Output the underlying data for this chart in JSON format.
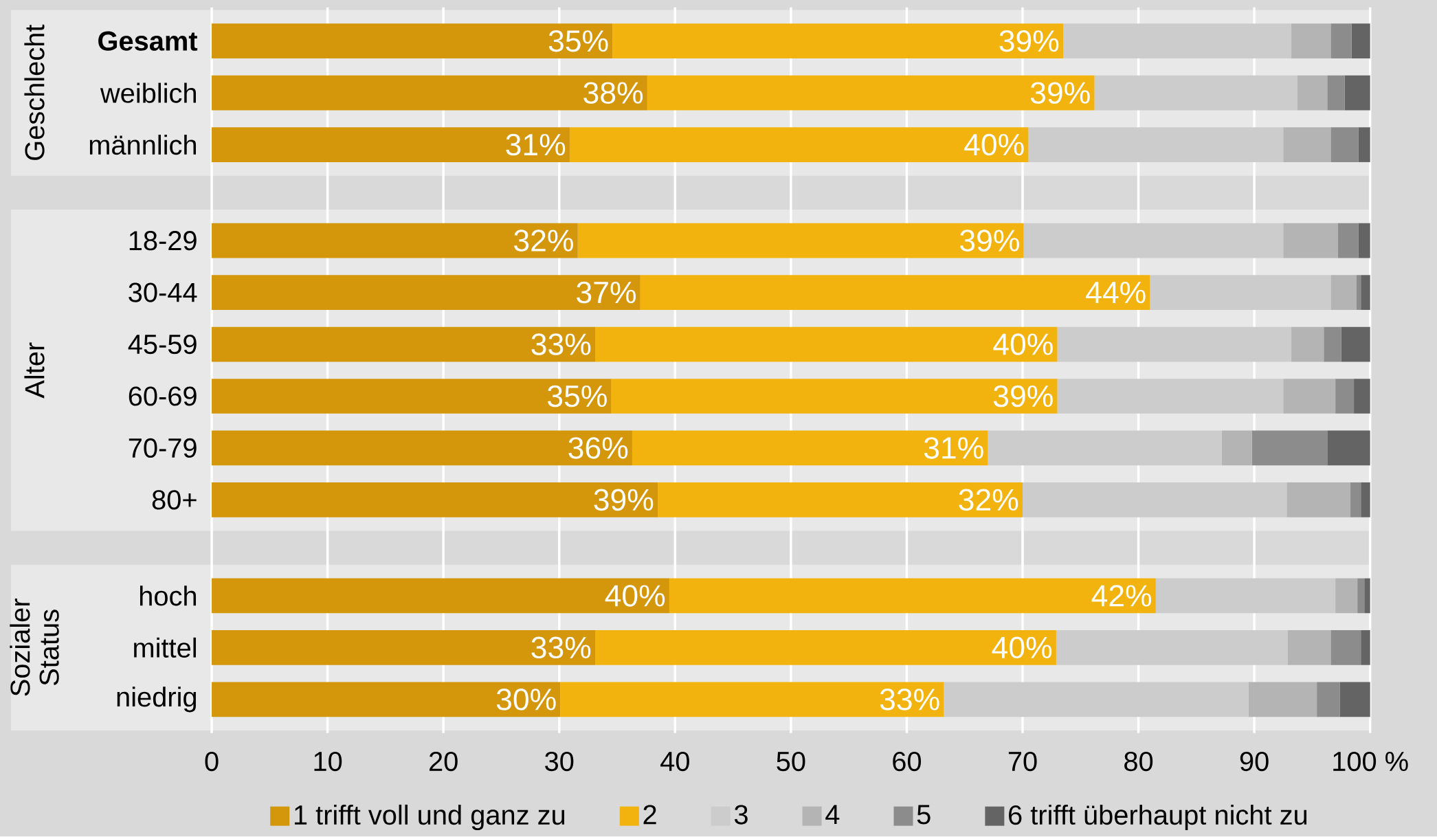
{
  "chart_data": {
    "type": "bar",
    "orientation": "horizontal",
    "stacked": true,
    "categories": [
      "Gesamt",
      "weiblich",
      "männlich",
      "18-29",
      "30-44",
      "45-59",
      "60-69",
      "70-79",
      "80+",
      "hoch",
      "mittel",
      "niedrig"
    ],
    "series": [
      {
        "name": "1 trifft voll und ganz zu",
        "color": "#d4960a",
        "values": [
          34.6,
          37.6,
          30.9,
          31.6,
          37.0,
          33.1,
          34.5,
          36.3,
          38.5,
          39.5,
          33.1,
          30.1
        ],
        "value_labels": [
          "35%",
          "38%",
          "31%",
          "32%",
          "37%",
          "33%",
          "35%",
          "36%",
          "39%",
          "40%",
          "33%",
          "30%"
        ]
      },
      {
        "name": "2",
        "color": "#f2b30f",
        "values": [
          38.9,
          38.6,
          39.6,
          38.5,
          44.0,
          39.9,
          38.5,
          30.7,
          31.5,
          42.0,
          39.8,
          33.1
        ],
        "value_labels": [
          "39%",
          "39%",
          "40%",
          "39%",
          "44%",
          "40%",
          "39%",
          "31%",
          "32%",
          "42%",
          "40%",
          "33%"
        ]
      },
      {
        "name": "3",
        "color": "#cccccc",
        "values": [
          19.7,
          17.5,
          22.0,
          22.4,
          15.6,
          20.2,
          19.5,
          20.2,
          22.8,
          15.5,
          20.0,
          26.3
        ]
      },
      {
        "name": "4",
        "color": "#b4b4b4",
        "values": [
          3.4,
          2.6,
          4.1,
          4.7,
          2.2,
          2.8,
          4.5,
          2.6,
          5.5,
          1.9,
          3.7,
          5.9
        ]
      },
      {
        "name": "5",
        "color": "#8c8c8c",
        "values": [
          1.8,
          1.5,
          2.4,
          1.8,
          0.4,
          1.5,
          1.6,
          6.5,
          0.9,
          0.6,
          2.6,
          2.0
        ]
      },
      {
        "name": "6 trifft überhaupt nicht zu",
        "color": "#646464",
        "values": [
          1.6,
          2.2,
          1.0,
          1.0,
          0.8,
          2.5,
          1.4,
          3.7,
          0.8,
          0.5,
          0.8,
          2.6
        ]
      }
    ],
    "xlim": [
      0,
      100
    ],
    "xticks": [
      0,
      10,
      20,
      30,
      40,
      50,
      60,
      70,
      80,
      90,
      {
        "value": 100,
        "label": "100 %"
      }
    ],
    "grid": "x",
    "legend": "bottom",
    "annotations": [
      "Geschlecht",
      "Alter",
      "Sozialer Status"
    ]
  }
}
